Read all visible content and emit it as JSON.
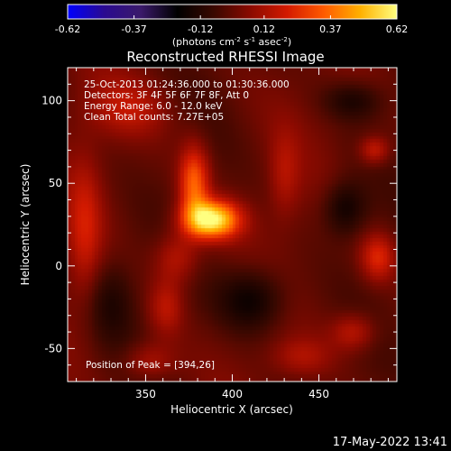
{
  "chart_data": {
    "type": "heatmap",
    "title": "Reconstructed RHESSI Image",
    "xlabel": "Heliocentric X (arcsec)",
    "ylabel": "Heliocentric Y (arcsec)",
    "xlim": [
      305,
      495
    ],
    "ylim": [
      -70,
      120
    ],
    "xticks": [
      350,
      400,
      450
    ],
    "yticks": [
      -50,
      0,
      50,
      100
    ],
    "colorbar": {
      "min": -0.62,
      "max": 0.62,
      "ticks": [
        "-0.62",
        "-0.37",
        "-0.12",
        "0.12",
        "0.37",
        "0.62"
      ],
      "label_parts": [
        "(photons cm",
        "-2",
        " s",
        "-1",
        " asec",
        "-2",
        ")"
      ],
      "colors": [
        "#0000ff",
        "#2a0a90",
        "#3a1a6a",
        "#000000",
        "#3a0800",
        "#8b0a00",
        "#d31a00",
        "#ff5a00",
        "#ffb000",
        "#ffff80"
      ]
    },
    "annotations": [
      "25-Oct-2013 01:24:36.000 to 01:30:36.000",
      "Detectors: 3F 4F 5F 6F 7F 8F, Att 0",
      "Energy Range: 6.0 - 12.0 keV",
      "Clean    Total counts: 7.27E+05"
    ],
    "peak_label": "Position of Peak = [394,26]",
    "peak": {
      "x": 394,
      "y": 26,
      "value": 0.62
    },
    "sources": [
      {
        "x": 388,
        "y": 28,
        "sx": 11,
        "sy": 8,
        "amp": 0.62
      },
      {
        "x": 378,
        "y": 50,
        "sx": 6,
        "sy": 16,
        "amp": 0.35
      },
      {
        "x": 368,
        "y": 5,
        "sx": 9,
        "sy": 11,
        "amp": 0.18
      },
      {
        "x": 340,
        "y": 95,
        "sx": 16,
        "sy": 12,
        "amp": 0.14
      },
      {
        "x": 362,
        "y": -25,
        "sx": 7,
        "sy": 12,
        "amp": 0.16
      },
      {
        "x": 352,
        "y": -58,
        "sx": 10,
        "sy": 8,
        "amp": 0.15
      },
      {
        "x": 315,
        "y": 20,
        "sx": 7,
        "sy": 30,
        "amp": 0.17
      },
      {
        "x": 482,
        "y": 70,
        "sx": 6,
        "sy": 6,
        "amp": 0.2
      },
      {
        "x": 484,
        "y": 5,
        "sx": 7,
        "sy": 10,
        "amp": 0.23
      },
      {
        "x": 470,
        "y": -40,
        "sx": 9,
        "sy": 8,
        "amp": 0.18
      },
      {
        "x": 430,
        "y": 55,
        "sx": 6,
        "sy": 18,
        "amp": 0.12
      },
      {
        "x": 440,
        "y": -55,
        "sx": 12,
        "sy": 8,
        "amp": 0.12
      },
      {
        "x": 330,
        "y": -20,
        "sx": 10,
        "sy": 18,
        "amp": -0.12
      },
      {
        "x": 465,
        "y": 35,
        "sx": 9,
        "sy": 12,
        "amp": -0.18
      },
      {
        "x": 412,
        "y": -20,
        "sx": 14,
        "sy": 14,
        "amp": -0.2
      },
      {
        "x": 470,
        "y": 100,
        "sx": 12,
        "sy": 8,
        "amp": -0.14
      }
    ]
  },
  "timestamp": "17-May-2022 13:41"
}
